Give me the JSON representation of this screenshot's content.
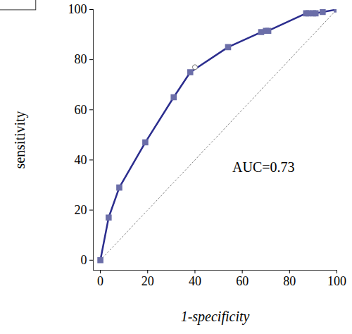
{
  "chart_data": {
    "type": "line",
    "xlabel": "1-specificity",
    "ylabel": "sensitivity",
    "x": [
      0,
      3.5,
      8,
      19,
      31,
      38,
      54,
      68,
      70,
      71,
      87,
      88,
      90,
      91,
      94,
      100
    ],
    "values": [
      0,
      17,
      29,
      47,
      65,
      75,
      85,
      91,
      91.5,
      91.5,
      98.5,
      98.5,
      98.5,
      98.5,
      99,
      100
    ],
    "color": "#2b2d8e",
    "marker": "square",
    "line_style": "solid",
    "highlight": {
      "x": 40,
      "y": 77,
      "marker": "circle"
    },
    "reference": {
      "x": [
        0,
        100
      ],
      "values": [
        0,
        100
      ],
      "line_style": "dotted"
    },
    "annotations": [
      "AUC=0.73"
    ],
    "xlim": [
      -3,
      100
    ],
    "ylim": [
      -4,
      100
    ],
    "xticks": [
      0,
      20,
      40,
      60,
      80,
      100
    ],
    "yticks": [
      0,
      20,
      40,
      60,
      80,
      100
    ],
    "grid": false
  }
}
